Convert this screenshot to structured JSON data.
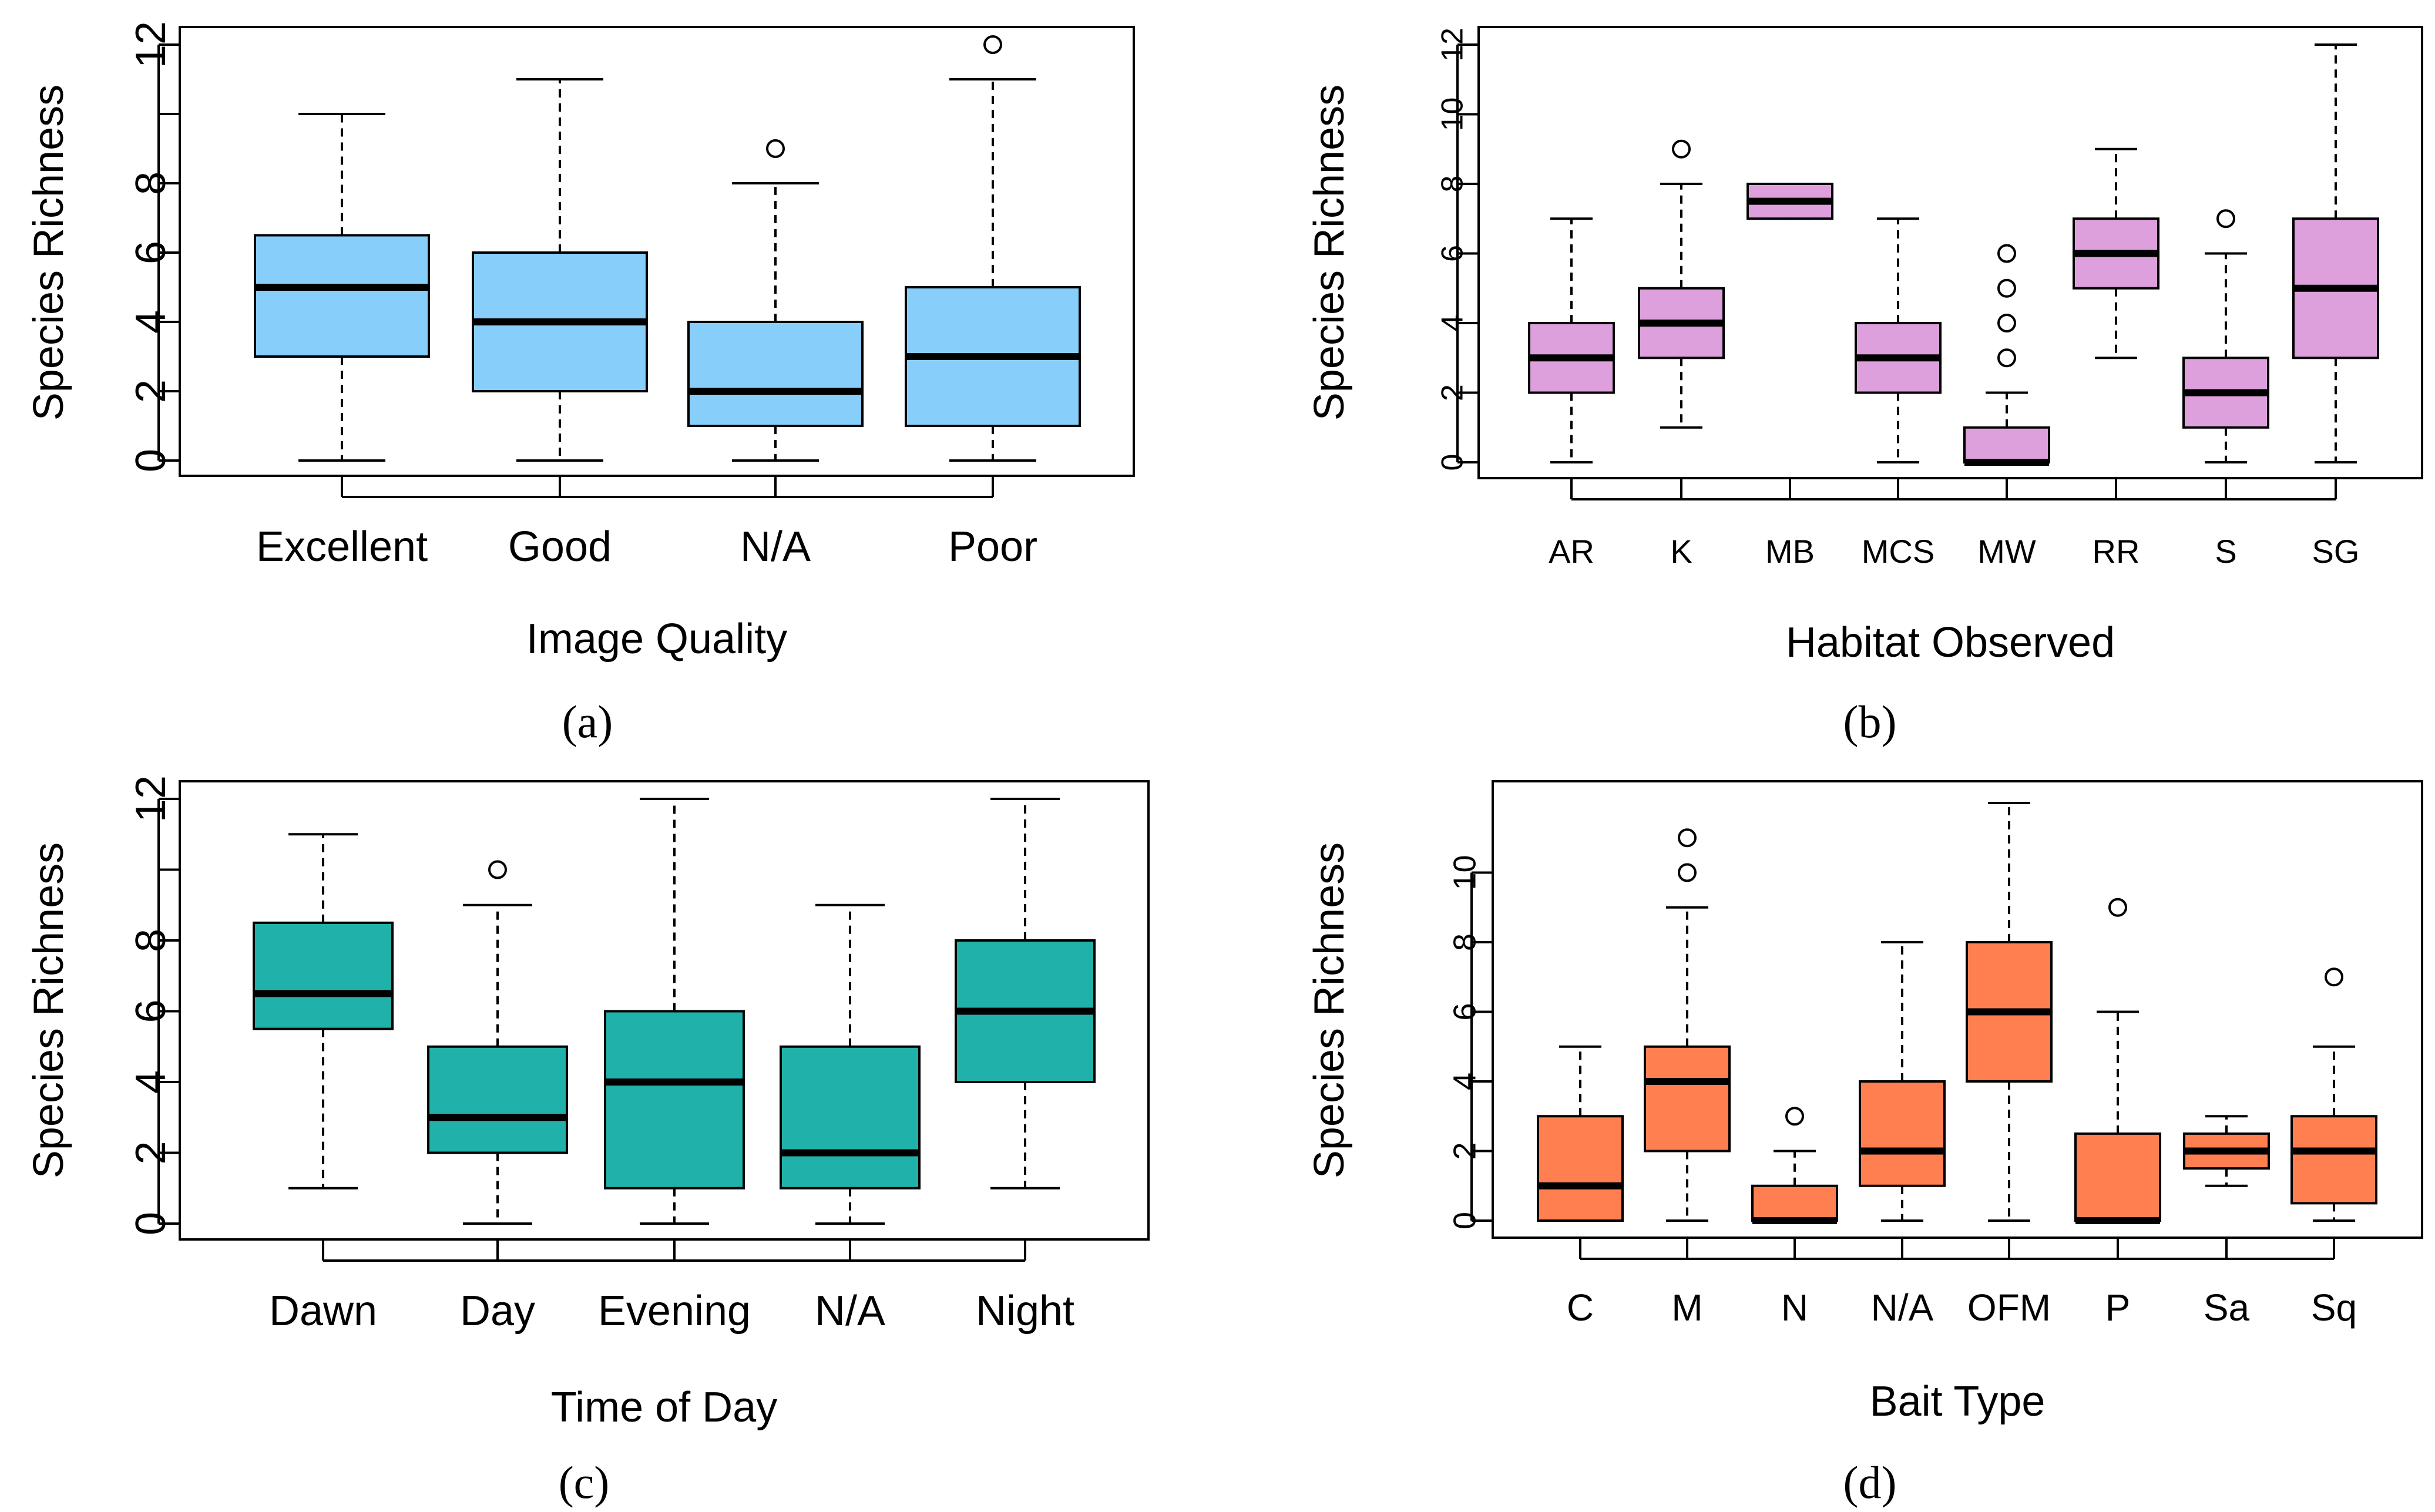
{
  "chart_data": [
    {
      "type": "boxplot",
      "panel": "a",
      "caption": "(a)",
      "color": "#87CEFA",
      "xlabel": "Image Quality",
      "ylabel": "Species Richness",
      "ylim": [
        0,
        12
      ],
      "yticks": [
        0,
        2,
        4,
        6,
        8,
        10,
        12
      ],
      "ytick_labels": [
        "0",
        "2",
        "4",
        "6",
        "8",
        "",
        "12"
      ],
      "categories": [
        "Excellent",
        "Good",
        "N/A",
        "Poor"
      ],
      "boxes": [
        {
          "min": 0,
          "q1": 3,
          "median": 5,
          "q3": 6.5,
          "max": 10,
          "outliers": []
        },
        {
          "min": 0,
          "q1": 2,
          "median": 4,
          "q3": 6,
          "max": 11,
          "outliers": []
        },
        {
          "min": 0,
          "q1": 1,
          "median": 2,
          "q3": 4,
          "max": 8,
          "outliers": [
            9
          ]
        },
        {
          "min": 0,
          "q1": 1,
          "median": 3,
          "q3": 5,
          "max": 11,
          "outliers": [
            12
          ]
        }
      ]
    },
    {
      "type": "boxplot",
      "panel": "b",
      "caption": "(b)",
      "color": "#DDA0DD",
      "xlabel": "Habitat Observed",
      "ylabel": "Species Richness",
      "ylim": [
        0,
        12
      ],
      "yticks": [
        0,
        2,
        4,
        6,
        8,
        10,
        12
      ],
      "ytick_labels": [
        "0",
        "2",
        "4",
        "6",
        "8",
        "10",
        "12"
      ],
      "categories": [
        "AR",
        "K",
        "MB",
        "MCS",
        "MW",
        "RR",
        "S",
        "SG"
      ],
      "boxes": [
        {
          "min": 0,
          "q1": 2,
          "median": 3,
          "q3": 4,
          "max": 7,
          "outliers": []
        },
        {
          "min": 1,
          "q1": 3,
          "median": 4,
          "q3": 5,
          "max": 8,
          "outliers": [
            9
          ]
        },
        {
          "min": 7,
          "q1": 7,
          "median": 7.5,
          "q3": 8,
          "max": 8,
          "outliers": []
        },
        {
          "min": 0,
          "q1": 2,
          "median": 3,
          "q3": 4,
          "max": 7,
          "outliers": []
        },
        {
          "min": 0,
          "q1": 0,
          "median": 0,
          "q3": 1,
          "max": 2,
          "outliers": [
            3,
            4,
            5,
            6
          ]
        },
        {
          "min": 3,
          "q1": 5,
          "median": 6,
          "q3": 7,
          "max": 9,
          "outliers": []
        },
        {
          "min": 0,
          "q1": 1,
          "median": 2,
          "q3": 3,
          "max": 6,
          "outliers": [
            7
          ]
        },
        {
          "min": 0,
          "q1": 3,
          "median": 5,
          "q3": 7,
          "max": 12,
          "outliers": []
        }
      ]
    },
    {
      "type": "boxplot",
      "panel": "c",
      "caption": "(c)",
      "color": "#20B2AA",
      "xlabel": "Time of Day",
      "ylabel": "Species Richness",
      "ylim": [
        0,
        12
      ],
      "yticks": [
        0,
        2,
        4,
        6,
        8,
        10,
        12
      ],
      "ytick_labels": [
        "0",
        "2",
        "4",
        "6",
        "8",
        "",
        "12"
      ],
      "categories": [
        "Dawn",
        "Day",
        "Evening",
        "N/A",
        "Night"
      ],
      "boxes": [
        {
          "min": 1,
          "q1": 5.5,
          "median": 6.5,
          "q3": 8.5,
          "max": 11,
          "outliers": []
        },
        {
          "min": 0,
          "q1": 2,
          "median": 3,
          "q3": 5,
          "max": 9,
          "outliers": [
            10
          ]
        },
        {
          "min": 0,
          "q1": 1,
          "median": 4,
          "q3": 6,
          "max": 12,
          "outliers": []
        },
        {
          "min": 0,
          "q1": 1,
          "median": 2,
          "q3": 5,
          "max": 9,
          "outliers": []
        },
        {
          "min": 1,
          "q1": 4,
          "median": 6,
          "q3": 8,
          "max": 12,
          "outliers": []
        }
      ]
    },
    {
      "type": "boxplot",
      "panel": "d",
      "caption": "(d)",
      "color": "#FF7F50",
      "xlabel": "Bait Type",
      "ylabel": "Species Richness",
      "ylim": [
        0,
        12
      ],
      "yticks": [
        0,
        2,
        4,
        6,
        8,
        10
      ],
      "ytick_labels": [
        "0",
        "2",
        "4",
        "6",
        "8",
        "10"
      ],
      "categories": [
        "C",
        "M",
        "N",
        "N/A",
        "OFM",
        "P",
        "Sa",
        "Sq"
      ],
      "boxes": [
        {
          "min": 0,
          "q1": 0,
          "median": 1,
          "q3": 3,
          "max": 5,
          "outliers": []
        },
        {
          "min": 0,
          "q1": 2,
          "median": 4,
          "q3": 5,
          "max": 9,
          "outliers": [
            10,
            11
          ]
        },
        {
          "min": 0,
          "q1": 0,
          "median": 0,
          "q3": 1,
          "max": 2,
          "outliers": [
            3
          ]
        },
        {
          "min": 0,
          "q1": 1,
          "median": 2,
          "q3": 4,
          "max": 8,
          "outliers": []
        },
        {
          "min": 0,
          "q1": 4,
          "median": 6,
          "q3": 8,
          "max": 12,
          "outliers": []
        },
        {
          "min": 0,
          "q1": 0,
          "median": 0,
          "q3": 2.5,
          "max": 6,
          "outliers": [
            9
          ]
        },
        {
          "min": 1,
          "q1": 1.5,
          "median": 2,
          "q3": 2.5,
          "max": 3,
          "outliers": []
        },
        {
          "min": 0,
          "q1": 0.5,
          "median": 2,
          "q3": 3,
          "max": 5,
          "outliers": [
            7
          ]
        }
      ]
    }
  ]
}
